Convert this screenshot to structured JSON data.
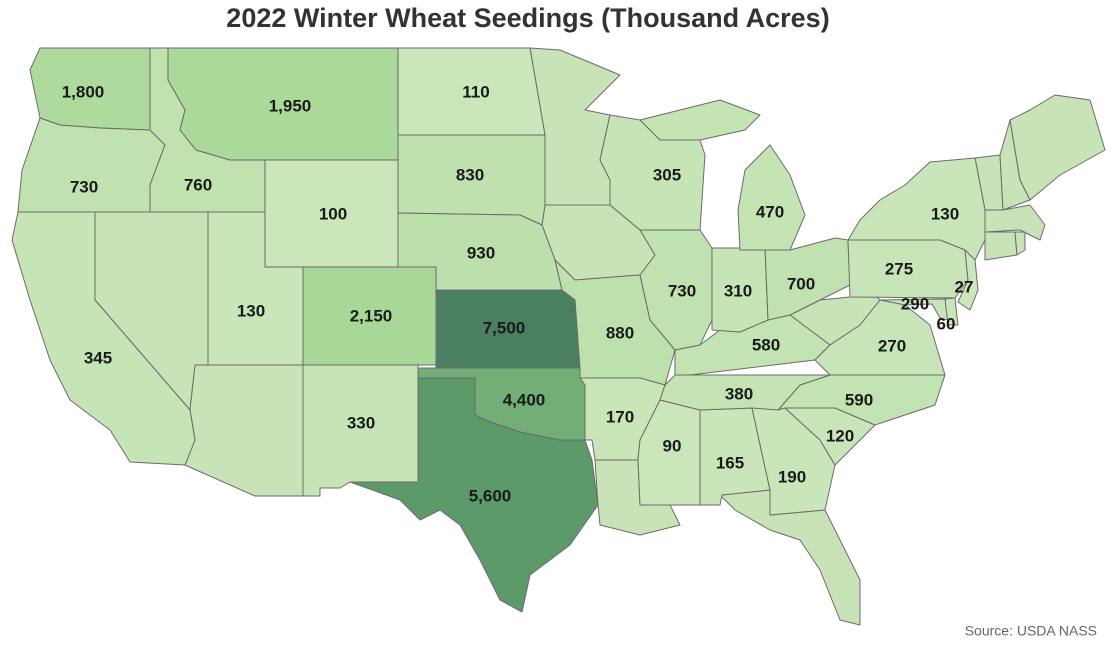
{
  "chart_data": {
    "type": "choropleth",
    "title": "2022 Winter Wheat Seedings (Thousand Acres)",
    "source": "Source: USDA NASS",
    "values": [
      1800,
      730,
      760,
      1950,
      100,
      110,
      830,
      930,
      2150,
      7500,
      4400,
      5600,
      330,
      130,
      345,
      880,
      170,
      90,
      165,
      190,
      120,
      590,
      380,
      580,
      730,
      310,
      700,
      470,
      305,
      130,
      275,
      27,
      290,
      60,
      270
    ],
    "value_labels": [
      "1,800",
      "730",
      "760",
      "1,950",
      "100",
      "110",
      "830",
      "930",
      "2,150",
      "7,500",
      "4,400",
      "5,600",
      "330",
      "130",
      "345",
      "880",
      "170",
      "90",
      "165",
      "190",
      "120",
      "590",
      "380",
      "580",
      "730",
      "310",
      "700",
      "470",
      "305",
      "130",
      "275",
      "27",
      "290",
      "60",
      "270"
    ],
    "colors": [
      "#cbe7bc",
      "#a2d590",
      "#62a26d",
      "#4b7f62"
    ],
    "no_data_color": "#c9e3b9"
  }
}
